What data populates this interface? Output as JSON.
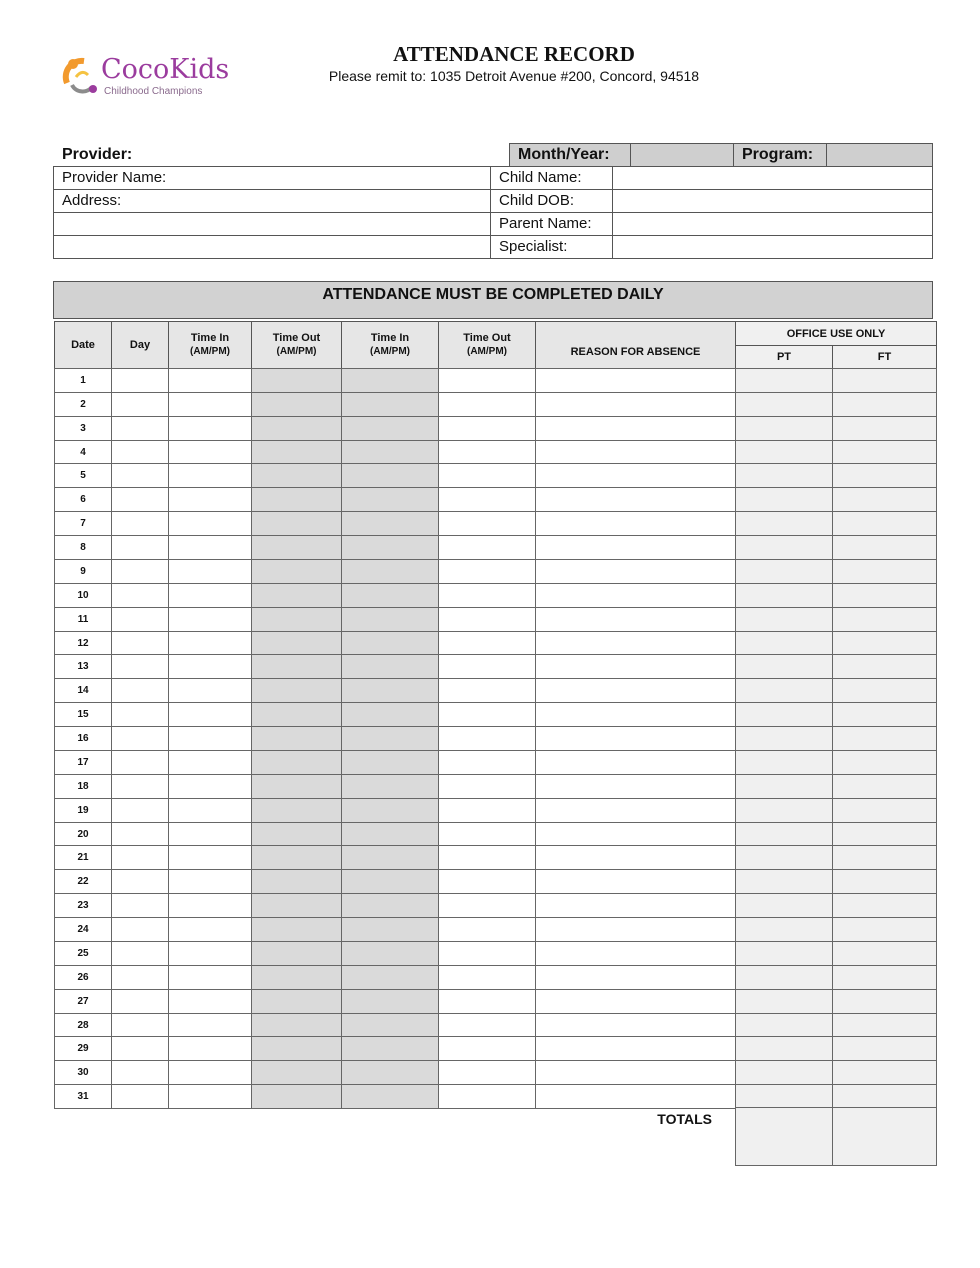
{
  "logo": {
    "name": "CocoKids",
    "tagline": "Childhood Champions",
    "colors": {
      "orange": "#f29a2e",
      "purple": "#9b3c9e",
      "gray": "#8c8c8c",
      "yellow": "#f5c342"
    }
  },
  "header": {
    "title": "ATTENDANCE RECORD",
    "remit": "Please remit to: 1035 Detroit Avenue #200, Concord, 94518"
  },
  "info": {
    "provider": "Provider:",
    "month_year": "Month/Year:",
    "program": "Program:",
    "provider_name": "Provider Name:",
    "address": "Address:",
    "child_name": "Child Name:",
    "child_dob": "Child DOB:",
    "parent_name": "Parent Name:",
    "specialist": "Specialist:"
  },
  "banner": "ATTENDANCE MUST BE COMPLETED DAILY",
  "table": {
    "headers": {
      "date": "Date",
      "day": "Day",
      "time_in_1": "Time In",
      "ampm_1": "(AM/PM)",
      "time_out_1": "Time Out",
      "ampm_2": "(AM/PM)",
      "time_in_2": "Time In",
      "ampm_3": "(AM/PM)",
      "time_out_2": "Time Out",
      "ampm_4": "(AM/PM)",
      "reason": "REASON FOR ABSENCE",
      "office": "OFFICE USE ONLY",
      "pt": "PT",
      "ft": "FT"
    },
    "dates": [
      "1",
      "2",
      "3",
      "4",
      "5",
      "6",
      "7",
      "8",
      "9",
      "10",
      "11",
      "12",
      "13",
      "14",
      "15",
      "16",
      "17",
      "18",
      "19",
      "20",
      "21",
      "22",
      "23",
      "24",
      "25",
      "26",
      "27",
      "28",
      "29",
      "30",
      "31"
    ],
    "totals": "TOTALS"
  }
}
